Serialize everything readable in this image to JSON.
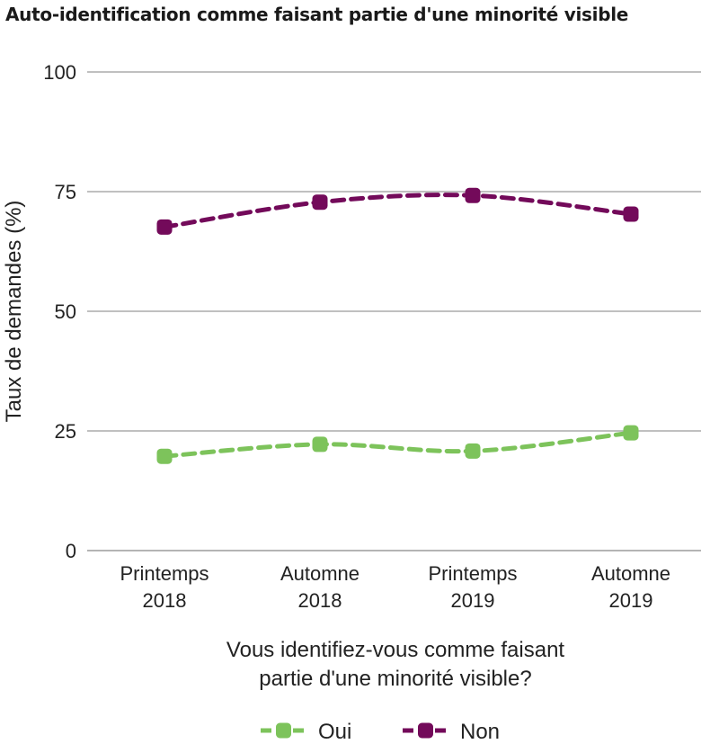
{
  "chart_data": {
    "type": "line",
    "title": "Auto-identification comme faisant partie d'une minorité visible",
    "ylabel": "Taux de demandes (%)",
    "xlabel_lines": [
      "Vous identifiez-vous comme faisant",
      "partie d'une minorité visible?"
    ],
    "categories": [
      [
        "Printemps",
        "2018"
      ],
      [
        "Automne",
        "2018"
      ],
      [
        "Printemps",
        "2019"
      ],
      [
        "Automne",
        "2019"
      ]
    ],
    "ylim": [
      0,
      100
    ],
    "yticks": [
      0,
      25,
      50,
      75,
      100
    ],
    "grid": true,
    "legend_position": "bottom",
    "series": [
      {
        "name": "Oui",
        "color": "#7dc35b",
        "values": [
          19.7,
          22.2,
          20.8,
          24.6
        ]
      },
      {
        "name": "Non",
        "color": "#730a5a",
        "values": [
          67.6,
          72.8,
          74.2,
          70.3
        ]
      }
    ]
  }
}
